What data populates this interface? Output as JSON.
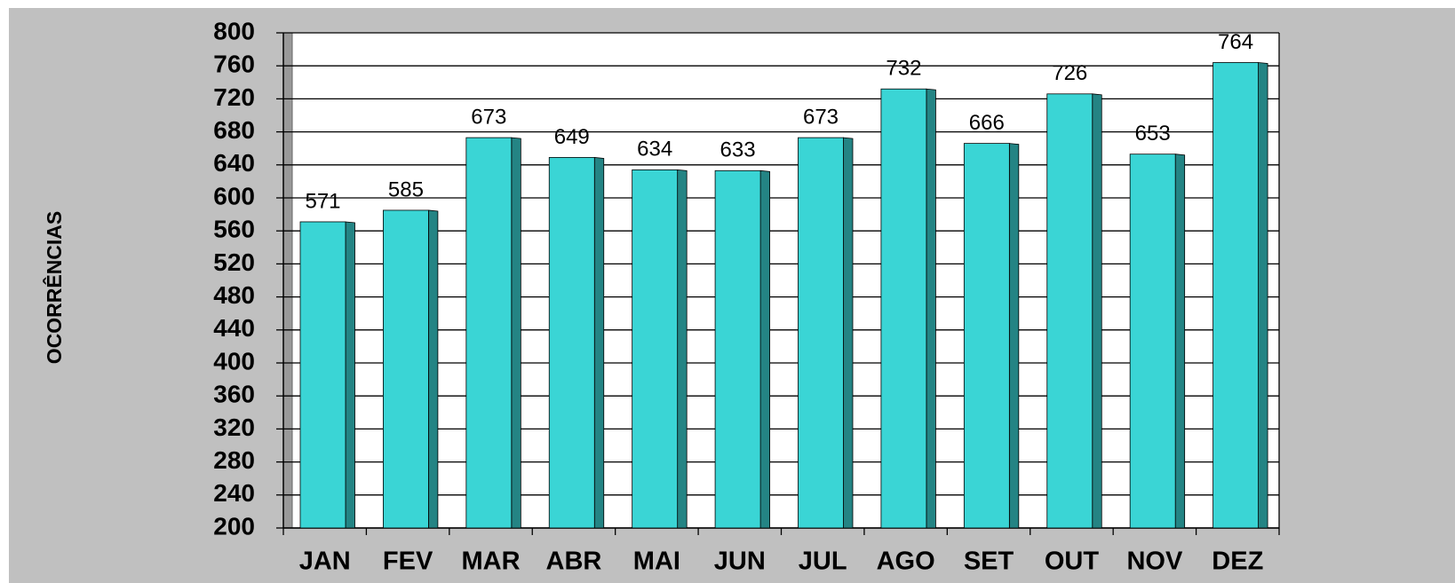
{
  "chart_data": {
    "type": "bar",
    "y_label": "OCORRÊNCIAS",
    "categories": [
      "JAN",
      "FEV",
      "MAR",
      "ABR",
      "MAI",
      "JUN",
      "JUL",
      "AGO",
      "SET",
      "OUT",
      "NOV",
      "DEZ"
    ],
    "values": [
      571,
      585,
      673,
      649,
      634,
      633,
      673,
      732,
      666,
      726,
      653,
      764
    ],
    "color": "#3ad5d5",
    "ylim": [
      200,
      800
    ],
    "yticks": [
      200,
      240,
      280,
      320,
      360,
      400,
      440,
      480,
      520,
      560,
      600,
      640,
      680,
      720,
      760,
      800
    ],
    "grid": true
  }
}
